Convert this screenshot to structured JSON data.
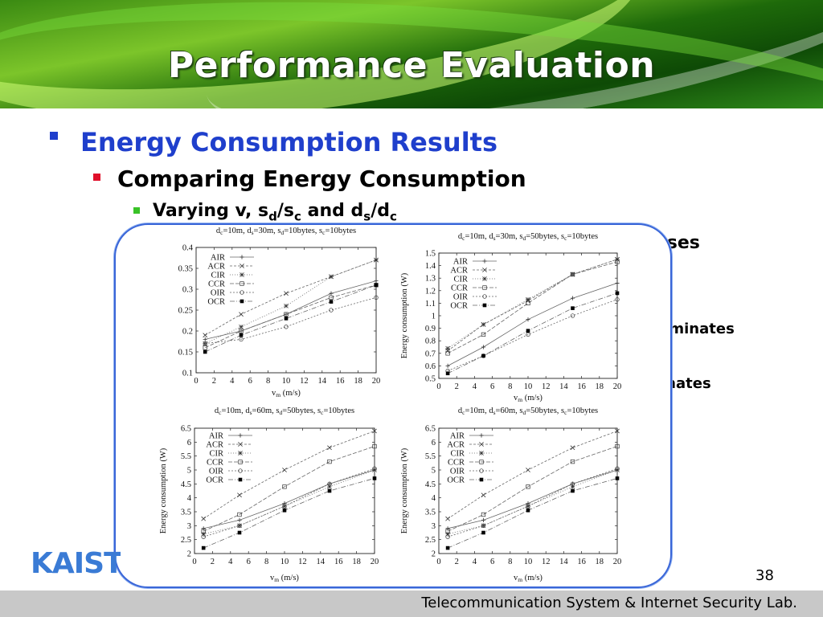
{
  "slide": {
    "title": "Performance Evaluation",
    "bullet_l1": "Energy Consumption Results",
    "bullet_l2": "Comparing Energy Consumption",
    "bullet_l3_prefix": "Varying v, s",
    "bullet_l3_sub1": "d",
    "bullet_l3_mid": "/s",
    "bullet_l3_sub2": "c",
    "bullet_l3_and": " and d",
    "bullet_l3_sub3": "s",
    "bullet_l3_mid2": "/d",
    "bullet_l3_sub4": "c",
    "partial_text_1": "eases",
    "partial_text_2": "ominates",
    "partial_text_3": "inates",
    "page_number": "38",
    "footer": "Telecommunication System & Internet Security Lab.",
    "logo": "KAIST"
  },
  "chart_data": [
    {
      "type": "line",
      "title": "dc=10m, ds=30m, sd=10bytes, sc=10bytes",
      "xlabel": "vm (m/s)",
      "ylabel": "",
      "xlim": [
        0,
        20
      ],
      "ylim": [
        0.1,
        0.4
      ],
      "xticks": [
        0,
        2,
        4,
        6,
        8,
        10,
        12,
        14,
        16,
        18,
        20
      ],
      "yticks": [
        0.1,
        0.15,
        0.2,
        0.25,
        0.3,
        0.35,
        0.4
      ],
      "x": [
        1,
        5,
        10,
        15,
        20
      ],
      "legend_position": "top-left",
      "series": [
        {
          "name": "AIR",
          "marker": "plus",
          "values": [
            0.18,
            0.2,
            0.24,
            0.29,
            0.32
          ]
        },
        {
          "name": "ACR",
          "marker": "x",
          "values": [
            0.19,
            0.24,
            0.29,
            0.33,
            0.37
          ]
        },
        {
          "name": "CIR",
          "marker": "star",
          "values": [
            0.17,
            0.21,
            0.26,
            0.33,
            0.37
          ]
        },
        {
          "name": "CCR",
          "marker": "square-open",
          "values": [
            0.16,
            0.2,
            0.24,
            0.28,
            0.31
          ]
        },
        {
          "name": "OIR",
          "marker": "circle-open",
          "values": [
            0.17,
            0.18,
            0.21,
            0.25,
            0.28
          ]
        },
        {
          "name": "OCR",
          "marker": "square-filled",
          "values": [
            0.15,
            0.19,
            0.23,
            0.27,
            0.31
          ]
        }
      ]
    },
    {
      "type": "line",
      "title": "dc=10m, ds=30m, sd=50bytes, sc=10bytes",
      "xlabel": "vm (m/s)",
      "ylabel": "Energy consumption (W)",
      "xlim": [
        0,
        20
      ],
      "ylim": [
        0.5,
        1.5
      ],
      "xticks": [
        0,
        2,
        4,
        6,
        8,
        10,
        12,
        14,
        16,
        18,
        20
      ],
      "yticks": [
        0.5,
        0.6,
        0.7,
        0.8,
        0.9,
        1,
        1.1,
        1.2,
        1.3,
        1.4,
        1.5
      ],
      "x": [
        1,
        5,
        10,
        15,
        20
      ],
      "legend_position": "top-left",
      "series": [
        {
          "name": "AIR",
          "marker": "plus",
          "values": [
            0.6,
            0.75,
            0.97,
            1.14,
            1.26
          ]
        },
        {
          "name": "ACR",
          "marker": "x",
          "values": [
            0.72,
            0.93,
            1.12,
            1.33,
            1.45
          ]
        },
        {
          "name": "CIR",
          "marker": "star",
          "values": [
            0.74,
            0.93,
            1.13,
            1.33,
            1.45
          ]
        },
        {
          "name": "CCR",
          "marker": "square-open",
          "values": [
            0.7,
            0.85,
            1.1,
            1.33,
            1.43
          ]
        },
        {
          "name": "OIR",
          "marker": "circle-open",
          "values": [
            0.56,
            0.68,
            0.85,
            1.0,
            1.13
          ]
        },
        {
          "name": "OCR",
          "marker": "square-filled",
          "values": [
            0.54,
            0.68,
            0.88,
            1.06,
            1.18
          ]
        }
      ]
    },
    {
      "type": "line",
      "title": "dc=10m, ds=60m, sd=50bytes, sc=10bytes",
      "xlabel": "vm (m/s)",
      "ylabel": "Energy consumption (W)",
      "xlim": [
        0,
        20
      ],
      "ylim": [
        2,
        6.5
      ],
      "xticks": [
        0,
        2,
        4,
        6,
        8,
        10,
        12,
        14,
        16,
        18,
        20
      ],
      "yticks": [
        2,
        2.5,
        3,
        3.5,
        4,
        4.5,
        5,
        5.5,
        6,
        6.5
      ],
      "x": [
        1,
        5,
        10,
        15,
        20
      ],
      "legend_position": "top-left",
      "series": [
        {
          "name": "AIR",
          "marker": "plus",
          "values": [
            2.9,
            3.2,
            3.8,
            4.5,
            5.0
          ]
        },
        {
          "name": "ACR",
          "marker": "x",
          "values": [
            3.25,
            4.1,
            5.0,
            5.8,
            6.4
          ]
        },
        {
          "name": "CIR",
          "marker": "star",
          "values": [
            2.7,
            3.0,
            3.7,
            4.4,
            5.0
          ]
        },
        {
          "name": "CCR",
          "marker": "square-open",
          "values": [
            2.8,
            3.4,
            4.4,
            5.3,
            5.85
          ]
        },
        {
          "name": "OIR",
          "marker": "circle-open",
          "values": [
            2.6,
            3.0,
            3.7,
            4.5,
            5.05
          ]
        },
        {
          "name": "OCR",
          "marker": "square-filled",
          "values": [
            2.2,
            2.75,
            3.55,
            4.25,
            4.7
          ]
        }
      ]
    },
    {
      "type": "line",
      "title": "dc=10m, ds=60m, sd=50bytes, sc=10bytes",
      "xlabel": "vm (m/s)",
      "ylabel": "Energy consumption (W)",
      "xlim": [
        0,
        20
      ],
      "ylim": [
        2,
        6.5
      ],
      "xticks": [
        0,
        2,
        4,
        6,
        8,
        10,
        12,
        14,
        16,
        18,
        20
      ],
      "yticks": [
        2,
        2.5,
        3,
        3.5,
        4,
        4.5,
        5,
        5.5,
        6,
        6.5
      ],
      "x": [
        1,
        5,
        10,
        15,
        20
      ],
      "legend_position": "top-left",
      "series": [
        {
          "name": "AIR",
          "marker": "plus",
          "values": [
            2.9,
            3.2,
            3.8,
            4.5,
            5.0
          ]
        },
        {
          "name": "ACR",
          "marker": "x",
          "values": [
            3.25,
            4.1,
            5.0,
            5.8,
            6.4
          ]
        },
        {
          "name": "CIR",
          "marker": "star",
          "values": [
            2.7,
            3.0,
            3.7,
            4.4,
            5.0
          ]
        },
        {
          "name": "CCR",
          "marker": "square-open",
          "values": [
            2.8,
            3.4,
            4.4,
            5.3,
            5.85
          ]
        },
        {
          "name": "OIR",
          "marker": "circle-open",
          "values": [
            2.6,
            3.0,
            3.7,
            4.5,
            5.05
          ]
        },
        {
          "name": "OCR",
          "marker": "square-filled",
          "values": [
            2.2,
            2.75,
            3.55,
            4.25,
            4.7
          ]
        }
      ]
    }
  ],
  "colors": {
    "bullet_l1": "#1f3fcc",
    "bullet_l2_marker": "#e0102a",
    "bullet_l3_marker": "#39c227",
    "frame_border": "#3a66d8",
    "footer_bar": "#c8c8c8",
    "logo": "#3a7bd5"
  }
}
